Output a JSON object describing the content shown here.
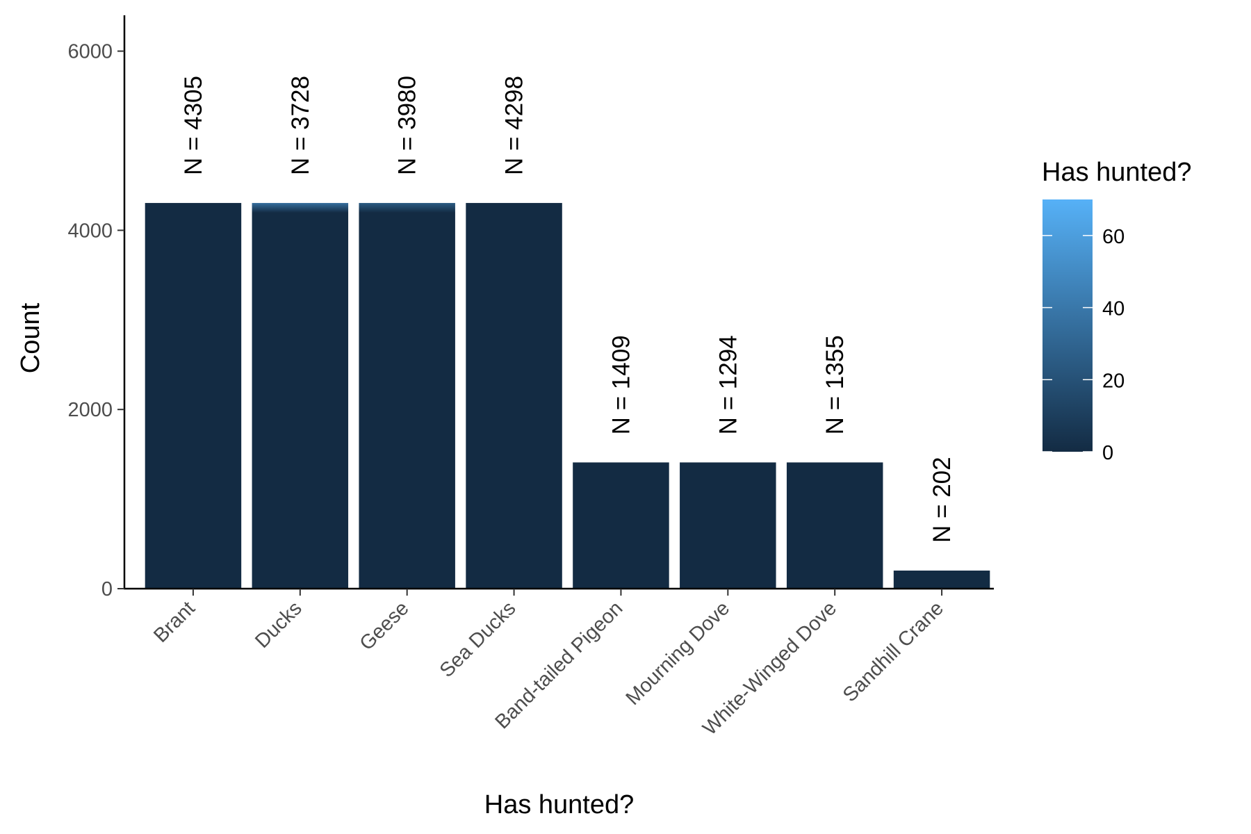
{
  "chart_data": {
    "type": "bar",
    "categories": [
      "Brant",
      "Ducks",
      "Geese",
      "Sea Ducks",
      "Band-tailed Pigeon",
      "Mourning Dove",
      "White-Winged Dove",
      "Sandhill Crane"
    ],
    "values": [
      4305,
      4305,
      4305,
      4305,
      1409,
      1409,
      1409,
      202
    ],
    "data_labels": [
      "N = 4305",
      "N = 3728",
      "N = 3980",
      "N = 4298",
      "N = 1409",
      "N = 1294",
      "N = 1355",
      "N = 202"
    ],
    "fill_top_level": [
      0,
      35,
      25,
      0,
      0,
      0,
      0,
      0
    ],
    "xlabel": "Has hunted?",
    "ylabel": "Count",
    "ylim": [
      0,
      6400
    ],
    "yticks": [
      0,
      2000,
      4000,
      6000
    ],
    "grid": false,
    "legend": {
      "title": "Has hunted?",
      "position": "right",
      "range": [
        0,
        70
      ],
      "ticks": [
        0,
        20,
        40,
        60
      ],
      "color_low": "#132B43",
      "color_high": "#56B1F7"
    },
    "bar_color": "#132B43"
  }
}
